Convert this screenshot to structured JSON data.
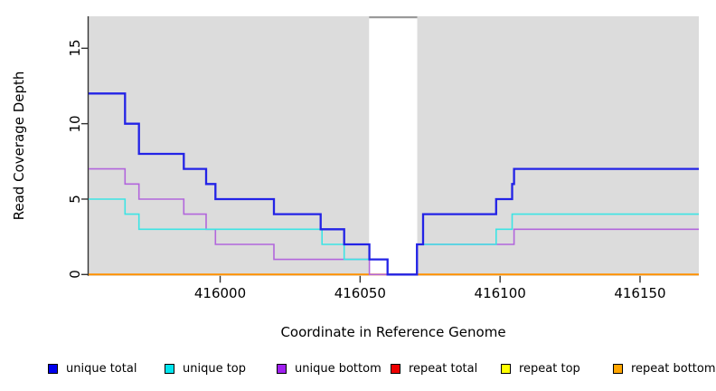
{
  "chart_data": {
    "type": "line",
    "title": "",
    "xlabel": "Coordinate in Reference Genome",
    "ylabel": "Read Coverage Depth",
    "xlim": [
      415953,
      416171
    ],
    "ylim": [
      0,
      17.12
    ],
    "x_ticks": [
      416000,
      416050,
      416100,
      416150
    ],
    "y_ticks": [
      0,
      5,
      10,
      15
    ],
    "grid": false,
    "panel_bg": "#DCDCDC",
    "axis_color": "#333333",
    "gap_band": {
      "from": 416053.2,
      "to": 416070.4,
      "color": "#FFFFFF",
      "top_border_color": "#999999"
    },
    "series": [
      {
        "name": "repeat total",
        "color": "#EE0000",
        "line_color": "#DD0000",
        "width": 1,
        "start_value": 0,
        "steps": []
      },
      {
        "name": "repeat top",
        "color": "#FFFF00",
        "line_color": "#FFFF00",
        "width": 1,
        "start_value": 0,
        "steps": []
      },
      {
        "name": "repeat bottom",
        "color": "#FFA500",
        "line_color": "#FF9100",
        "width": 2,
        "start_value": 0,
        "steps": []
      },
      {
        "name": "unique bottom",
        "color": "#A020F0",
        "line_color": "#B266DC",
        "width": 1.6,
        "start_value": 7,
        "steps": [
          [
            415966,
            6
          ],
          [
            415971,
            5
          ],
          [
            415987,
            4
          ],
          [
            415995,
            3
          ],
          [
            415998.3,
            2
          ],
          [
            416019.2,
            1
          ],
          [
            416053.3,
            0
          ],
          [
            416070.4,
            2
          ],
          [
            416105,
            3
          ]
        ]
      },
      {
        "name": "unique top",
        "color": "#00E5EE",
        "line_color": "#3DE4E4",
        "width": 1.6,
        "start_value": 5,
        "steps": [
          [
            415966,
            4
          ],
          [
            415971,
            3
          ],
          [
            416036.4,
            2
          ],
          [
            416044.3,
            1
          ],
          [
            416059.8,
            0
          ],
          [
            416070.3,
            2
          ],
          [
            416098.6,
            3
          ],
          [
            416104.3,
            4
          ]
        ]
      },
      {
        "name": "unique total",
        "color": "#0000EE",
        "line_color": "#2323E6",
        "width": 2.3,
        "start_value": 12,
        "steps": [
          [
            415966,
            10
          ],
          [
            415971,
            8
          ],
          [
            415987,
            7
          ],
          [
            415995,
            6
          ],
          [
            415998.3,
            5
          ],
          [
            416019.2,
            4
          ],
          [
            416035.9,
            3
          ],
          [
            416044.3,
            2
          ],
          [
            416053.3,
            1
          ],
          [
            416059.8,
            0
          ],
          [
            416070.3,
            2
          ],
          [
            416072.5,
            4
          ],
          [
            416098.6,
            5
          ],
          [
            416104.3,
            6
          ],
          [
            416105,
            7
          ]
        ]
      }
    ],
    "legend": [
      {
        "label": "unique total",
        "color": "#0000EE"
      },
      {
        "label": "unique top",
        "color": "#00E5EE"
      },
      {
        "label": "unique bottom",
        "color": "#A020F0"
      },
      {
        "label": "repeat total",
        "color": "#EE0000"
      },
      {
        "label": "repeat top",
        "color": "#FFFF00"
      },
      {
        "label": "repeat bottom",
        "color": "#FFA500"
      }
    ],
    "legend_position": "bottom"
  }
}
